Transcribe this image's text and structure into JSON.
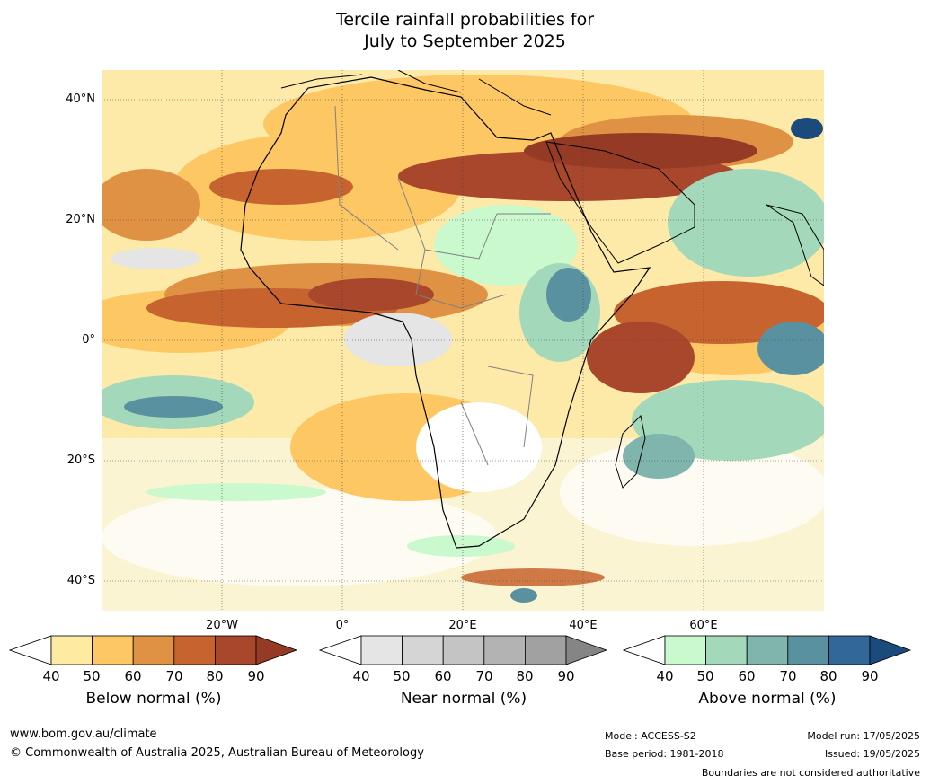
{
  "title": {
    "line1": "Tercile rainfall probabilities for",
    "line2": "July to September 2025"
  },
  "map": {
    "lat_labels": [
      "40°N",
      "20°N",
      "0°",
      "20°S",
      "40°S"
    ],
    "lon_labels": [
      "20°W",
      "0°",
      "20°E",
      "40°E",
      "60°E"
    ],
    "extent": {
      "lon_min": -37,
      "lon_max": 83,
      "lat_min": -45,
      "lat_max": 45
    }
  },
  "legend": {
    "tick_labels": [
      "40",
      "50",
      "60",
      "70",
      "80",
      "90"
    ],
    "below": {
      "label": "Below normal (%)",
      "colors": [
        "#ffffff",
        "#feeaa0",
        "#fdc863",
        "#df9243",
        "#c7632f",
        "#a8472b",
        "#953a24"
      ]
    },
    "near": {
      "label": "Near normal (%)",
      "colors": [
        "#ffffff",
        "#e5e5e5",
        "#d5d5d5",
        "#c4c4c4",
        "#b3b3b3",
        "#a1a1a1",
        "#858585"
      ]
    },
    "above": {
      "label": "Above normal (%)",
      "colors": [
        "#ffffff",
        "#c9f9cd",
        "#a3d8bb",
        "#7fb5ac",
        "#5a91a0",
        "#32679a",
        "#1b4a7c"
      ]
    }
  },
  "footer": {
    "website": "www.bom.gov.au/climate",
    "copyright": "© Commonwealth of Australia 2025, Australian Bureau of Meteorology",
    "model": "Model: ACCESS-S2",
    "base_period": "Base period: 1981-2018",
    "model_run": "Model run: 17/05/2025",
    "issued": "Issued: 19/05/2025",
    "disclaimer": "Boundaries are not considered authoritative"
  }
}
